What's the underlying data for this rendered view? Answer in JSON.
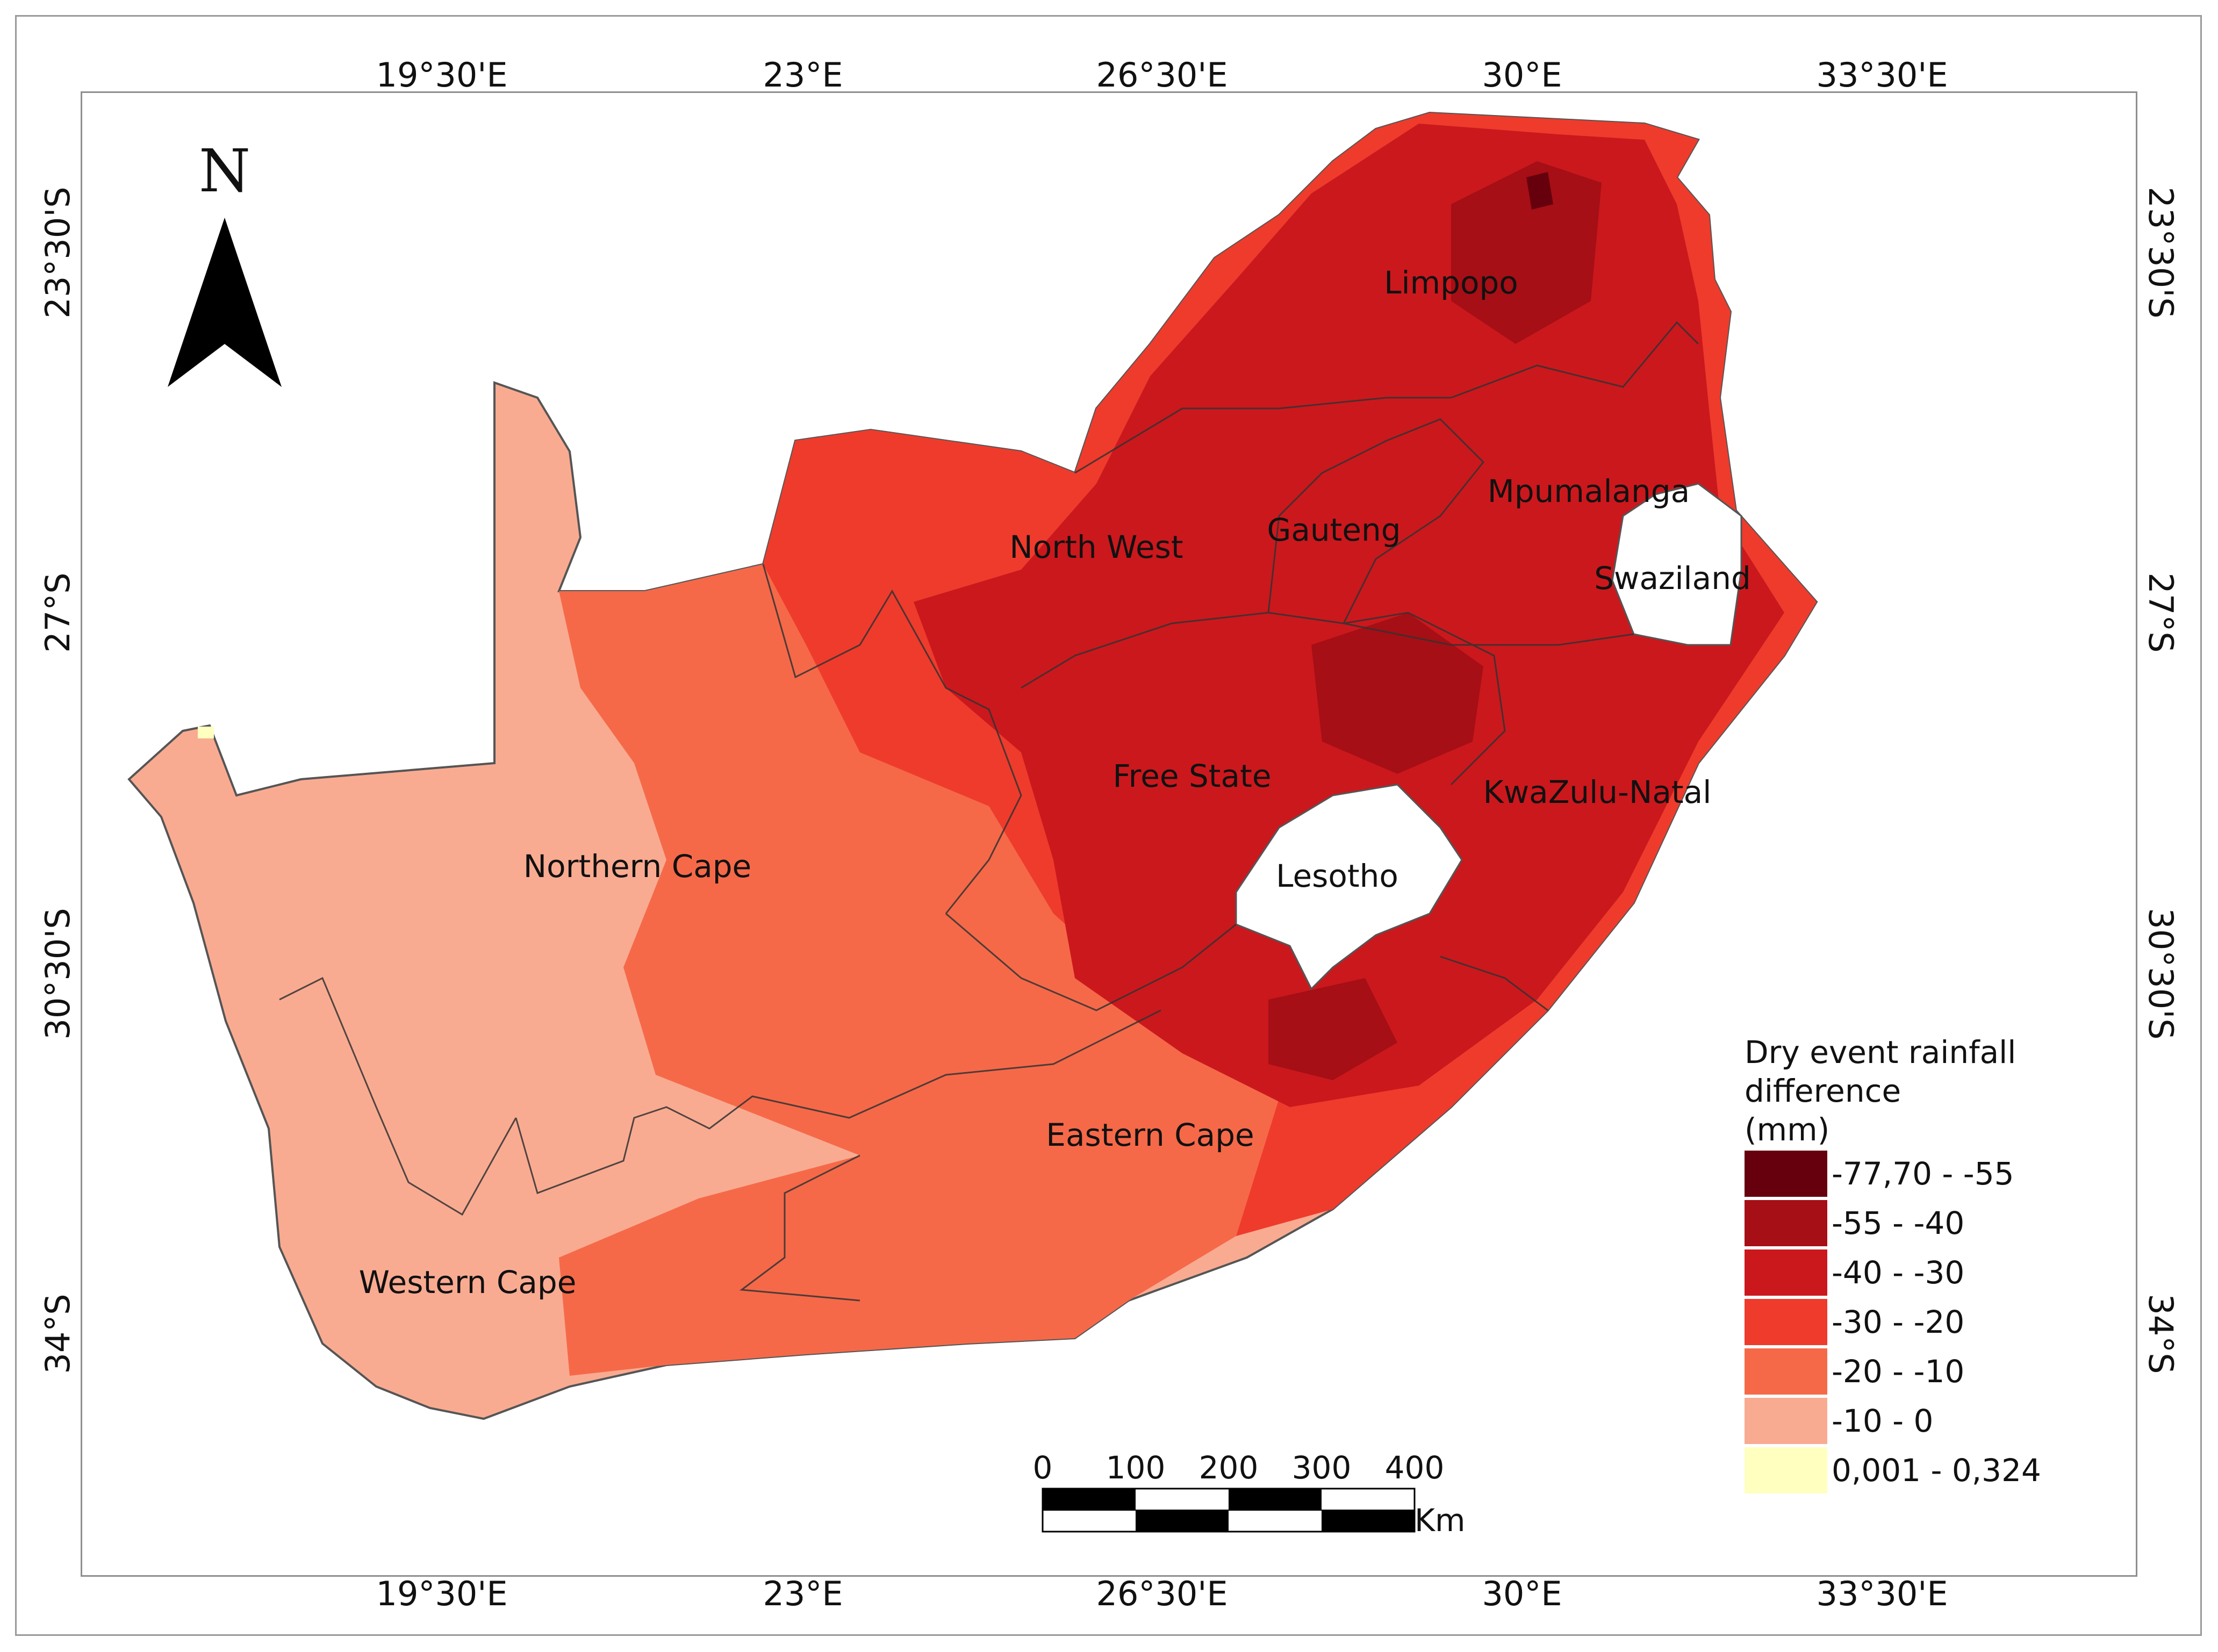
{
  "map": {
    "north_label": "N",
    "longitude_labels": [
      "19°30'E",
      "23°E",
      "26°30'E",
      "30°E",
      "33°30'E"
    ],
    "latitude_labels": [
      "23°30'S",
      "27°S",
      "30°30'S",
      "34°S"
    ]
  },
  "regions": {
    "limpopo": "Limpopo",
    "mpumalanga": "Mpumalanga",
    "gauteng": "Gauteng",
    "north_west": "North West",
    "swaziland": "Swaziland",
    "free_state": "Free State",
    "kwazulu_natal": "KwaZulu-Natal",
    "lesotho": "Lesotho",
    "northern_cape": "Northern Cape",
    "eastern_cape": "Eastern Cape",
    "western_cape": "Western Cape"
  },
  "legend": {
    "title_line1": "Dry event rainfall",
    "title_line2": "difference",
    "title_line3": "(mm)",
    "classes": [
      {
        "label": "-77,70 - -55",
        "color": "#67000d"
      },
      {
        "label": "-55 - -40",
        "color": "#a50f15"
      },
      {
        "label": "-40 - -30",
        "color": "#cb181d"
      },
      {
        "label": "-30 - -20",
        "color": "#ef3b2c"
      },
      {
        "label": "-20 - -10",
        "color": "#f56949"
      },
      {
        "label": "-10 - 0",
        "color": "#f9ab91"
      },
      {
        "label": "0,001 - 0,324",
        "color": "#ffffc0"
      }
    ]
  },
  "scale_bar": {
    "ticks": [
      "0",
      "100",
      "200",
      "300",
      "400"
    ],
    "unit": "Km"
  }
}
